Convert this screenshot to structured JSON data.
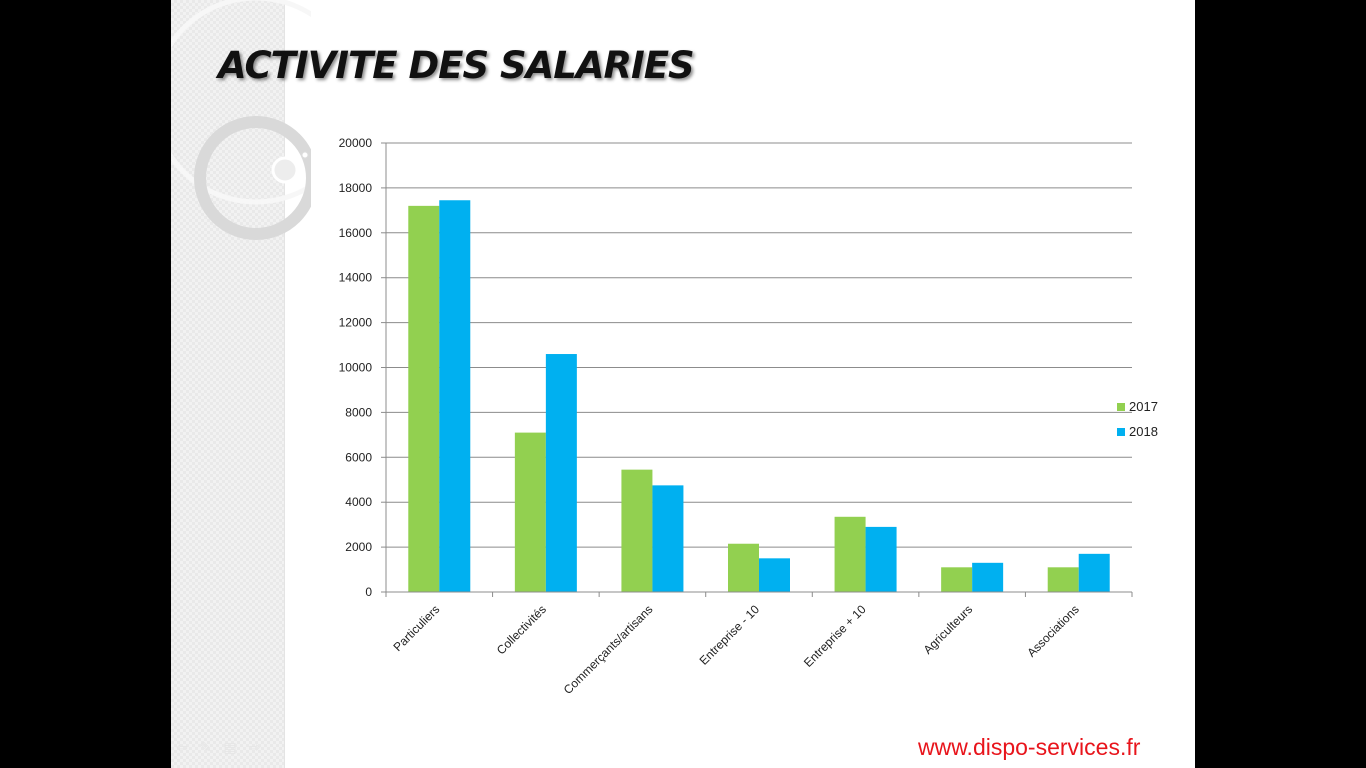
{
  "slide": {
    "title": "ACTIVITE DES SALARIES",
    "website": "www.dispo-services.fr"
  },
  "nav_icons": [
    "arrow-left-icon",
    "pen-icon",
    "menu-icon",
    "arrow-right-icon"
  ],
  "colors": {
    "series_2017": "#92d050",
    "series_2018": "#00b0f0",
    "website": "#e8141b"
  },
  "chart_data": {
    "type": "bar",
    "categories": [
      "Particuliers",
      "Collectivités",
      "Commerçants/artisans",
      "Entreprise - 10",
      "Entreprise + 10",
      "Agriculteurs",
      "Associations"
    ],
    "series": [
      {
        "name": "2017",
        "values": [
          17200,
          7100,
          5450,
          2150,
          3350,
          1100,
          1100
        ]
      },
      {
        "name": "2018",
        "values": [
          17450,
          10600,
          4750,
          1500,
          2900,
          1300,
          1700
        ]
      }
    ],
    "yticks": [
      0,
      2000,
      4000,
      6000,
      8000,
      10000,
      12000,
      14000,
      16000,
      18000,
      20000
    ],
    "ylim": [
      0,
      20000
    ],
    "grid": true,
    "legend_position": "right"
  }
}
